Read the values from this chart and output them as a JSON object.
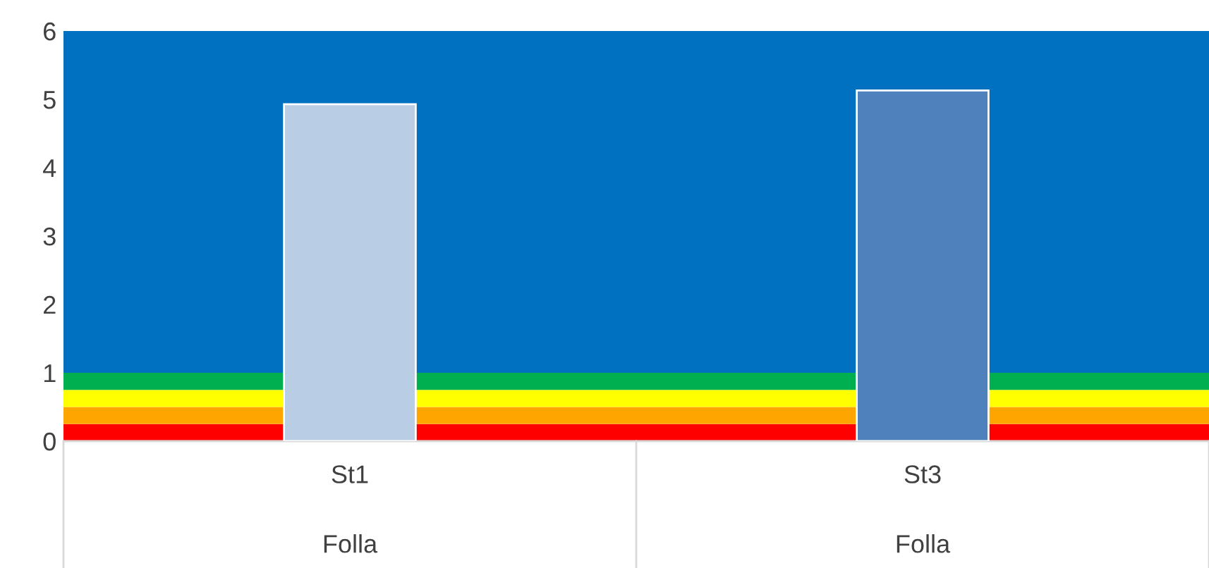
{
  "chart_data": {
    "type": "bar",
    "categories": [
      "St1\n\nFolla",
      "St3\n\nFolla"
    ],
    "values": [
      4.93,
      5.13
    ],
    "colors": [
      "#b9cde5",
      "#4f81bd"
    ],
    "ylim": [
      0,
      6
    ],
    "yticks": [
      0,
      1,
      2,
      3,
      4,
      5,
      6
    ],
    "bands": [
      {
        "axis": "y",
        "from": 0,
        "to": 0.25,
        "color": "#ff0000"
      },
      {
        "axis": "y",
        "from": 0.25,
        "to": 0.5,
        "color": "#ffa500"
      },
      {
        "axis": "y",
        "from": 0.5,
        "to": 0.75,
        "color": "#ffff00"
      },
      {
        "axis": "y",
        "from": 0.75,
        "to": 1,
        "color": "#00b050"
      },
      {
        "axis": "y",
        "from": 1,
        "to": 6,
        "color": "#0070c0"
      }
    ],
    "grid": false,
    "legend": false
  }
}
